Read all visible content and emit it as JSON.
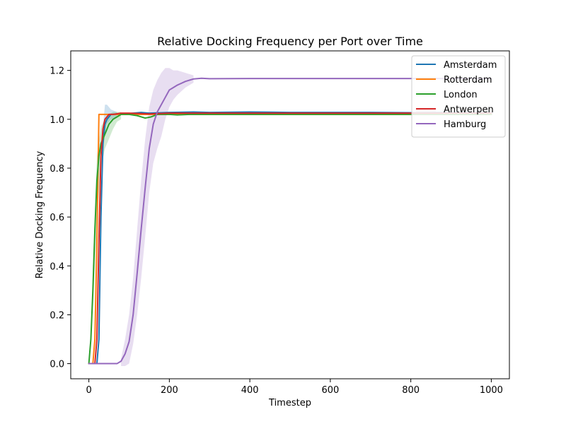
{
  "chart_data": {
    "type": "line",
    "title": "Relative Docking Frequency per Port over Time",
    "xlabel": "Timestep",
    "ylabel": "Relative Docking Frequency",
    "xlim": [
      -45,
      1045
    ],
    "ylim": [
      -0.062,
      1.28
    ],
    "xticks": [
      0,
      200,
      400,
      600,
      800,
      1000
    ],
    "yticks": [
      0.0,
      0.2,
      0.4,
      0.6,
      0.8,
      1.0,
      1.2
    ],
    "legend_position": "top-right",
    "grid": false,
    "series": [
      {
        "name": "Amsterdam",
        "color": "#1f77b4",
        "points": [
          [
            0,
            0
          ],
          [
            10,
            0
          ],
          [
            20,
            0
          ],
          [
            25,
            0.1
          ],
          [
            30,
            0.6
          ],
          [
            35,
            0.9
          ],
          [
            40,
            0.98
          ],
          [
            45,
            1.0
          ],
          [
            55,
            1.02
          ],
          [
            70,
            1.02
          ],
          [
            90,
            1.022
          ],
          [
            110,
            1.025
          ],
          [
            130,
            1.028
          ],
          [
            150,
            1.025
          ],
          [
            200,
            1.028
          ],
          [
            260,
            1.03
          ],
          [
            300,
            1.028
          ],
          [
            400,
            1.03
          ],
          [
            500,
            1.028
          ],
          [
            600,
            1.028
          ],
          [
            700,
            1.028
          ],
          [
            800,
            1.027
          ],
          [
            900,
            1.028
          ],
          [
            1000,
            1.027
          ]
        ],
        "band": [
          [
            30,
            0.55,
            0.68
          ],
          [
            35,
            0.85,
            0.97
          ],
          [
            40,
            0.95,
            1.06
          ],
          [
            45,
            0.98,
            1.06
          ],
          [
            55,
            1.0,
            1.04
          ],
          [
            70,
            1.01,
            1.03
          ]
        ]
      },
      {
        "name": "Rotterdam",
        "color": "#ff7f0e",
        "points": [
          [
            0,
            0
          ],
          [
            10,
            0
          ],
          [
            15,
            0.1
          ],
          [
            20,
            0.5
          ],
          [
            25,
            1.02
          ],
          [
            40,
            1.02
          ],
          [
            100,
            1.02
          ],
          [
            200,
            1.02
          ],
          [
            300,
            1.02
          ],
          [
            400,
            1.02
          ],
          [
            500,
            1.02
          ],
          [
            600,
            1.02
          ],
          [
            700,
            1.02
          ],
          [
            800,
            1.02
          ],
          [
            900,
            1.02
          ],
          [
            1000,
            1.02
          ]
        ],
        "band": []
      },
      {
        "name": "London",
        "color": "#2ca02c",
        "points": [
          [
            0,
            0
          ],
          [
            5,
            0.1
          ],
          [
            10,
            0.3
          ],
          [
            15,
            0.55
          ],
          [
            20,
            0.75
          ],
          [
            25,
            0.85
          ],
          [
            30,
            0.9
          ],
          [
            40,
            0.94
          ],
          [
            50,
            0.98
          ],
          [
            60,
            1.0
          ],
          [
            70,
            1.01
          ],
          [
            80,
            1.02
          ],
          [
            100,
            1.02
          ],
          [
            120,
            1.015
          ],
          [
            140,
            1.005
          ],
          [
            155,
            1.01
          ],
          [
            170,
            1.02
          ],
          [
            200,
            1.02
          ],
          [
            220,
            1.018
          ],
          [
            250,
            1.02
          ],
          [
            300,
            1.02
          ],
          [
            400,
            1.02
          ],
          [
            500,
            1.02
          ],
          [
            600,
            1.02
          ],
          [
            700,
            1.02
          ],
          [
            800,
            1.02
          ],
          [
            900,
            1.02
          ],
          [
            1000,
            1.02
          ]
        ],
        "band": [
          [
            10,
            0.2,
            0.4
          ],
          [
            20,
            0.6,
            0.85
          ],
          [
            30,
            0.8,
            0.97
          ],
          [
            40,
            0.88,
            1.0
          ],
          [
            50,
            0.92,
            1.02
          ],
          [
            60,
            0.96,
            1.03
          ],
          [
            70,
            0.99,
            1.03
          ],
          [
            80,
            1.0,
            1.03
          ]
        ]
      },
      {
        "name": "Antwerpen",
        "color": "#d62728",
        "points": [
          [
            0,
            0
          ],
          [
            10,
            0
          ],
          [
            15,
            0
          ],
          [
            20,
            0.1
          ],
          [
            25,
            0.5
          ],
          [
            30,
            0.85
          ],
          [
            35,
            0.96
          ],
          [
            40,
            1.0
          ],
          [
            50,
            1.02
          ],
          [
            60,
            1.02
          ],
          [
            80,
            1.025
          ],
          [
            100,
            1.025
          ],
          [
            150,
            1.022
          ],
          [
            200,
            1.025
          ],
          [
            300,
            1.025
          ],
          [
            400,
            1.025
          ],
          [
            500,
            1.025
          ],
          [
            600,
            1.025
          ],
          [
            700,
            1.025
          ],
          [
            800,
            1.025
          ],
          [
            900,
            1.025
          ],
          [
            1000,
            1.025
          ]
        ],
        "band": []
      },
      {
        "name": "Hamburg",
        "color": "#9467bd",
        "points": [
          [
            0,
            0
          ],
          [
            50,
            0
          ],
          [
            70,
            0
          ],
          [
            80,
            0.01
          ],
          [
            90,
            0.04
          ],
          [
            100,
            0.09
          ],
          [
            110,
            0.2
          ],
          [
            120,
            0.37
          ],
          [
            130,
            0.55
          ],
          [
            140,
            0.72
          ],
          [
            150,
            0.88
          ],
          [
            160,
            0.98
          ],
          [
            170,
            1.03
          ],
          [
            180,
            1.06
          ],
          [
            190,
            1.09
          ],
          [
            200,
            1.12
          ],
          [
            210,
            1.13
          ],
          [
            220,
            1.14
          ],
          [
            240,
            1.155
          ],
          [
            260,
            1.165
          ],
          [
            280,
            1.168
          ],
          [
            300,
            1.166
          ],
          [
            400,
            1.167
          ],
          [
            500,
            1.167
          ],
          [
            600,
            1.167
          ],
          [
            700,
            1.167
          ],
          [
            800,
            1.167
          ],
          [
            900,
            1.167
          ],
          [
            1000,
            1.167
          ]
        ],
        "band": [
          [
            80,
            -0.01,
            0.02
          ],
          [
            90,
            -0.01,
            0.1
          ],
          [
            100,
            0.0,
            0.2
          ],
          [
            110,
            0.08,
            0.35
          ],
          [
            120,
            0.2,
            0.55
          ],
          [
            130,
            0.35,
            0.75
          ],
          [
            140,
            0.52,
            0.92
          ],
          [
            150,
            0.7,
            1.05
          ],
          [
            160,
            0.82,
            1.12
          ],
          [
            170,
            0.88,
            1.16
          ],
          [
            180,
            0.93,
            1.19
          ],
          [
            190,
            1.0,
            1.21
          ],
          [
            200,
            1.05,
            1.21
          ],
          [
            210,
            1.08,
            1.2
          ],
          [
            220,
            1.1,
            1.2
          ],
          [
            240,
            1.13,
            1.19
          ],
          [
            260,
            1.15,
            1.18
          ]
        ]
      }
    ]
  }
}
